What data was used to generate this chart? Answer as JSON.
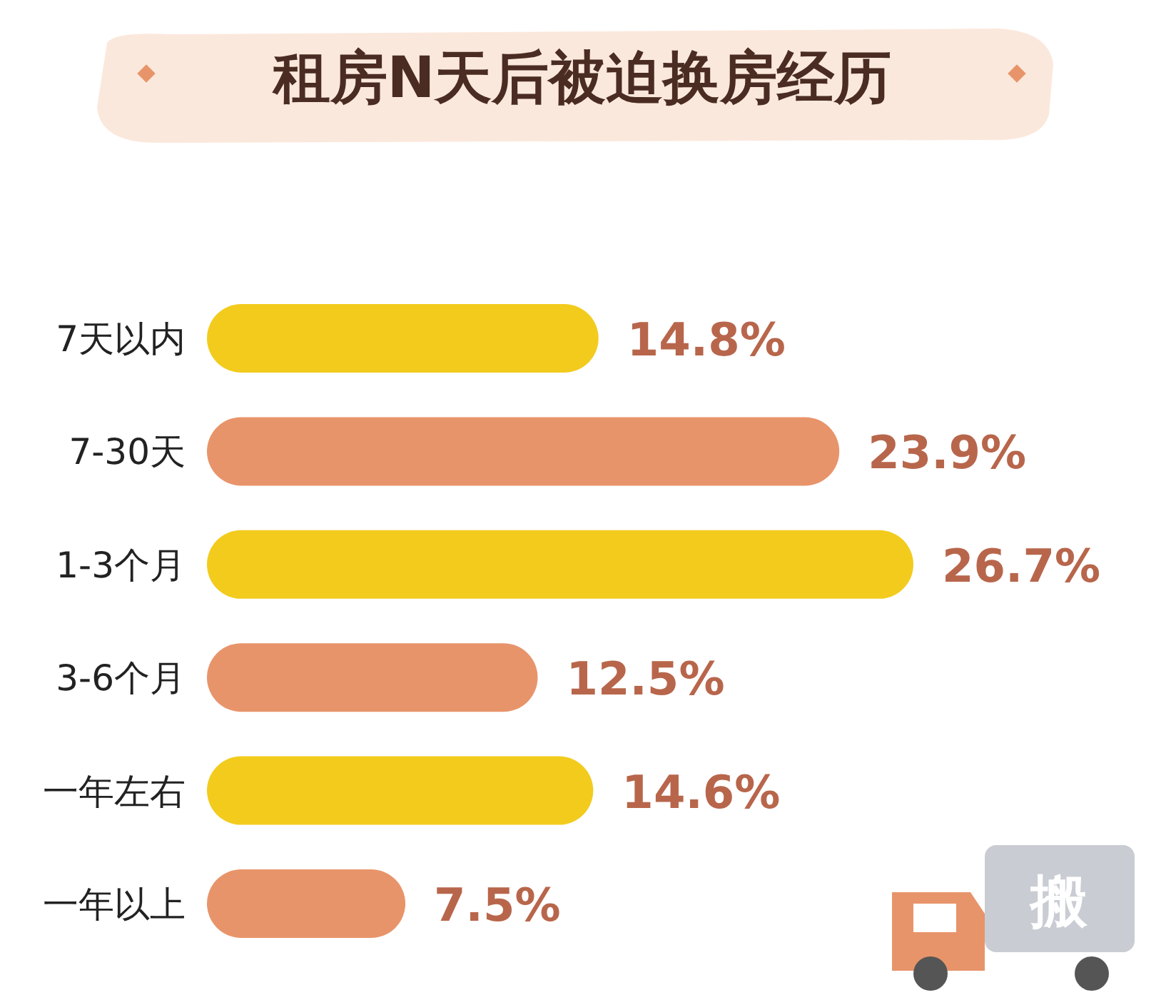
{
  "chart_data": {
    "type": "bar",
    "orientation": "horizontal",
    "title": "租房N天后被迫换房经历",
    "categories": [
      "7天以内",
      "7-30天",
      "1-3个月",
      "3-6个月",
      "一年左右",
      "一年以上"
    ],
    "values": [
      14.8,
      23.9,
      26.7,
      12.5,
      14.6,
      7.5
    ],
    "colors": [
      "#f2cb1d",
      "#e8946a",
      "#f2cb1d",
      "#e8946a",
      "#f2cb1d",
      "#e8946a"
    ],
    "value_labels": [
      "14.8%",
      "23.9%",
      "26.7%",
      "12.5%",
      "14.6%",
      "7.5%"
    ],
    "annotations": [
      "搬"
    ]
  }
}
